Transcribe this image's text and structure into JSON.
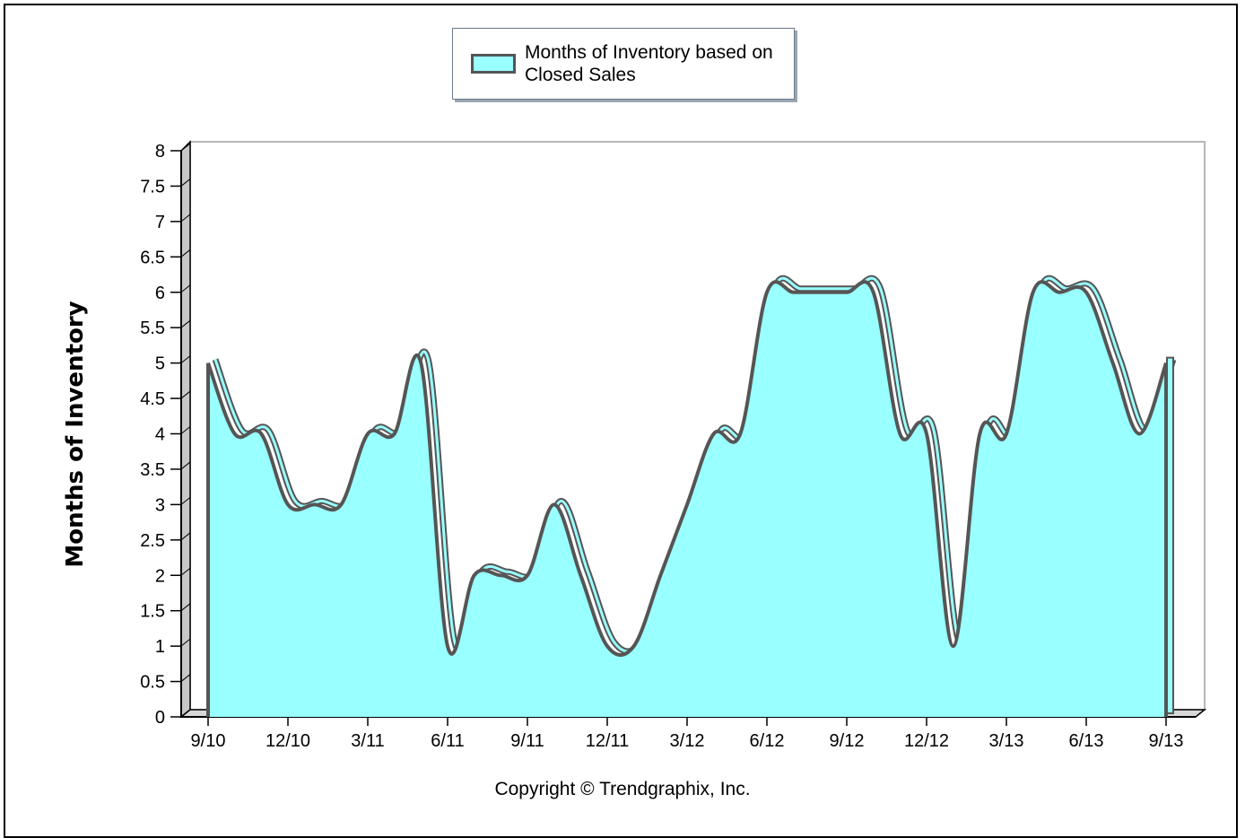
{
  "chart_data": {
    "type": "area",
    "title": "",
    "ylabel": "Months of Inventory",
    "xlabel": "",
    "ylim": [
      0,
      8
    ],
    "yticks": [
      "0",
      "0.5",
      "1",
      "1.5",
      "2",
      "2.5",
      "3",
      "3.5",
      "4",
      "4.5",
      "5",
      "5.5",
      "6",
      "6.5",
      "7",
      "7.5",
      "8"
    ],
    "x_tick_labels": [
      "9/10",
      "12/10",
      "3/11",
      "6/11",
      "9/11",
      "12/11",
      "3/12",
      "6/12",
      "9/12",
      "12/12",
      "3/13",
      "6/13",
      "9/13"
    ],
    "legend": {
      "position": "top-center",
      "entry": "Months of Inventory based on Closed Sales"
    },
    "fill_color": "#99ffff",
    "line_color": "#555555",
    "series": [
      {
        "name": "Months of Inventory based on Closed Sales",
        "x": [
          "9/10",
          "10/10",
          "11/10",
          "12/10",
          "1/11",
          "2/11",
          "3/11",
          "4/11",
          "5/11",
          "6/11",
          "7/11",
          "8/11",
          "9/11",
          "10/11",
          "11/11",
          "12/11",
          "1/12",
          "2/12",
          "3/12",
          "4/12",
          "5/12",
          "6/12",
          "7/12",
          "8/12",
          "9/12",
          "10/12",
          "11/12",
          "12/12",
          "1/13",
          "2/13",
          "3/13",
          "4/13",
          "5/13",
          "6/13",
          "7/13",
          "8/13",
          "9/13"
        ],
        "values": [
          5,
          4,
          4,
          3,
          3,
          3,
          4,
          4,
          5,
          1,
          2,
          2,
          2,
          3,
          2,
          1,
          1,
          2,
          3,
          4,
          4,
          6,
          6,
          6,
          6,
          6,
          4,
          4,
          1,
          4,
          4,
          6,
          6,
          6,
          5,
          4,
          5
        ]
      }
    ]
  },
  "footer": {
    "copyright": "Copyright © Trendgraphix, Inc."
  }
}
